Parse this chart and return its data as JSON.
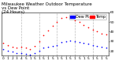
{
  "title_line1": "Milwaukee Weather Outdoor Temperature",
  "title_line2": "vs Dew Point",
  "title_line3": "(24 Hours)",
  "temp_color": "#ff0000",
  "dew_color": "#0000ff",
  "legend_temp_label": "Temp",
  "legend_dew_label": "Dew Pt",
  "background_color": "#ffffff",
  "grid_color": "#bbbbbb",
  "hours": [
    0,
    1,
    2,
    3,
    4,
    5,
    6,
    7,
    8,
    9,
    10,
    11,
    12,
    13,
    14,
    15,
    16,
    17,
    18,
    19,
    20,
    21,
    22,
    23
  ],
  "temp": [
    28,
    26,
    24,
    23,
    24,
    23,
    22,
    25,
    30,
    36,
    41,
    46,
    50,
    54,
    55,
    54,
    52,
    50,
    47,
    44,
    42,
    40,
    38,
    37
  ],
  "dew": [
    22,
    20,
    19,
    18,
    18,
    17,
    16,
    18,
    20,
    23,
    24,
    25,
    26,
    29,
    30,
    31,
    30,
    29,
    28,
    27,
    26,
    25,
    24,
    23
  ],
  "ylim": [
    15,
    60
  ],
  "ytick_vals": [
    20,
    30,
    40,
    50,
    60
  ],
  "ytick_labels": [
    "20",
    "30",
    "40",
    "50",
    "60"
  ],
  "xtick_positions": [
    0,
    1,
    2,
    3,
    4,
    5,
    6,
    7,
    8,
    9,
    10,
    11,
    12,
    13,
    14,
    15,
    16,
    17,
    18,
    19,
    20,
    21,
    22,
    23
  ],
  "xtick_labels": [
    "0",
    "1",
    "2",
    "3",
    "4",
    "5",
    "1",
    "5",
    "1",
    "5",
    "1",
    "5",
    "1",
    "5",
    "1",
    "5",
    "1",
    "5",
    "1",
    "5",
    "1",
    "5",
    "1",
    "5"
  ],
  "title_fontsize": 4.0,
  "tick_fontsize": 3.2,
  "marker_size": 1.2,
  "legend_fontsize": 3.5,
  "grid_positions": [
    4,
    8,
    12,
    16,
    20
  ],
  "legend_rect_blue": "#0000ff",
  "legend_rect_red": "#ff0000"
}
